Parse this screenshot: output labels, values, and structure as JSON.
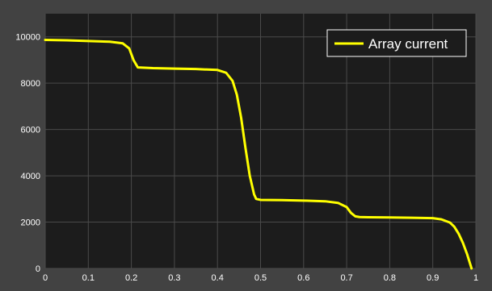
{
  "chart_data": {
    "type": "line",
    "title": "",
    "xlabel": "",
    "ylabel": "",
    "xlim": [
      0,
      1
    ],
    "ylim": [
      0,
      11000
    ],
    "grid": true,
    "legend_position": "top-right",
    "x_ticks": [
      "0",
      "0.1",
      "0.2",
      "0.3",
      "0.4",
      "0.5",
      "0.6",
      "0.7",
      "0.8",
      "0.9",
      "1"
    ],
    "y_ticks": [
      "0",
      "2000",
      "4000",
      "6000",
      "8000",
      "10000"
    ],
    "series": [
      {
        "name": "Array current",
        "color": "#ffff00",
        "x": [
          0,
          0.05,
          0.1,
          0.15,
          0.18,
          0.195,
          0.205,
          0.215,
          0.25,
          0.3,
          0.35,
          0.4,
          0.42,
          0.435,
          0.445,
          0.455,
          0.465,
          0.475,
          0.485,
          0.49,
          0.5,
          0.55,
          0.6,
          0.65,
          0.68,
          0.7,
          0.71,
          0.72,
          0.73,
          0.75,
          0.8,
          0.85,
          0.9,
          0.92,
          0.94,
          0.95,
          0.96,
          0.97,
          0.98,
          0.99
        ],
        "y": [
          9870,
          9850,
          9820,
          9790,
          9720,
          9500,
          9000,
          8680,
          8650,
          8630,
          8610,
          8570,
          8450,
          8100,
          7500,
          6500,
          5200,
          4000,
          3200,
          3000,
          2960,
          2950,
          2930,
          2900,
          2830,
          2650,
          2400,
          2250,
          2220,
          2210,
          2200,
          2190,
          2170,
          2120,
          1980,
          1800,
          1500,
          1100,
          600,
          0
        ]
      }
    ]
  },
  "legend": {
    "label": "Array current"
  }
}
